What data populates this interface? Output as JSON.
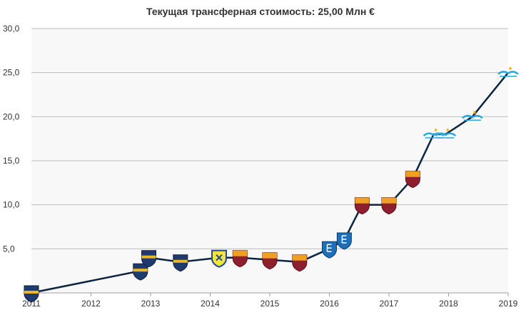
{
  "chart_data": {
    "type": "line",
    "title": "Текущая трансферная стоимость: 25,00 Млн €",
    "xlabel": "",
    "ylabel": "",
    "x_ticks": [
      "2011",
      "2012",
      "2013",
      "2014",
      "2015",
      "2016",
      "2017",
      "2018",
      "2019"
    ],
    "y_ticks": [
      "5,0",
      "10,0",
      "15,0",
      "20,0",
      "25,0",
      "30,0"
    ],
    "xlim": [
      2011,
      2019
    ],
    "ylim": [
      0,
      30
    ],
    "grid": true,
    "series": [
      {
        "points": [
          {
            "x": 2011.0,
            "y": 0.0,
            "club": "Boca Juniors"
          },
          {
            "x": 2012.83,
            "y": 2.5,
            "club": "Boca Juniors"
          },
          {
            "x": 2012.97,
            "y": 4.0,
            "club": "Boca Juniors"
          },
          {
            "x": 2013.5,
            "y": 3.5,
            "club": "Boca Juniors"
          },
          {
            "x": 2014.15,
            "y": 4.0,
            "club": "Chievo"
          },
          {
            "x": 2014.5,
            "y": 4.0,
            "club": "Roma"
          },
          {
            "x": 2015.0,
            "y": 3.75,
            "club": "Roma"
          },
          {
            "x": 2015.5,
            "y": 3.5,
            "club": "Roma"
          },
          {
            "x": 2016.0,
            "y": 5.0,
            "club": "Empoli"
          },
          {
            "x": 2016.25,
            "y": 6.0,
            "club": "Empoli"
          },
          {
            "x": 2016.55,
            "y": 10.0,
            "club": "Roma"
          },
          {
            "x": 2017.0,
            "y": 10.0,
            "club": "Roma"
          },
          {
            "x": 2017.4,
            "y": 13.0,
            "club": "Roma"
          },
          {
            "x": 2017.75,
            "y": 18.0,
            "club": "Zenit"
          },
          {
            "x": 2017.95,
            "y": 18.0,
            "club": "Zenit"
          },
          {
            "x": 2018.4,
            "y": 20.0,
            "club": "Zenit"
          },
          {
            "x": 2019.0,
            "y": 25.0,
            "club": "Zenit"
          }
        ]
      }
    ],
    "colors": {
      "line": "#0b2542",
      "grid": "#bdbdbd",
      "plot_bg": "#f8f8f8",
      "boca": "#1f3b6e",
      "boca_band": "#e8b923",
      "roma": "#8e1f2f",
      "roma_band": "#f0a020",
      "chievo": "#f2e53b",
      "chievo_border": "#1f4a9a",
      "empoli": "#1e6fba",
      "zenit": "#2aa8e0"
    }
  }
}
